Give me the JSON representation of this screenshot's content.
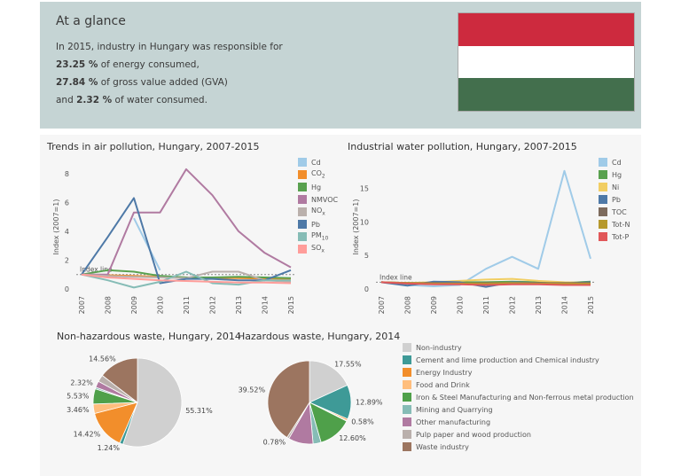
{
  "banner": {
    "title": "At a glance",
    "lines": [
      {
        "pre": "In 2015, industry in Hungary was responsible for",
        "val": "",
        "post": ""
      },
      {
        "pre": "",
        "val": "23.25 %",
        "post": " of energy consumed,"
      },
      {
        "pre": "",
        "val": "27.84 %",
        "post": " of gross value added (GVA)"
      },
      {
        "pre": "and ",
        "val": "2.32 %",
        "post": " of water consumed."
      }
    ],
    "flag_colors": [
      "#cd2a3e",
      "#ffffff",
      "#436f4d"
    ]
  },
  "chart_data": [
    {
      "id": "air",
      "type": "line",
      "title": "Trends in air pollution, Hungary, 2007-2015",
      "ylabel": "Index (2007=1)",
      "x": [
        "2007",
        "2008",
        "2009",
        "2010",
        "2011",
        "2012",
        "2013",
        "2014",
        "2015"
      ],
      "ylim": [
        0,
        8.6
      ],
      "yticks": [
        0,
        2,
        4,
        6,
        8
      ],
      "index_line_label": "Index line",
      "series": [
        {
          "name": "Cd",
          "sub": "",
          "color": "#a0cbe8",
          "values": [
            null,
            null,
            4.9,
            1.3,
            null,
            null,
            null,
            null,
            null
          ]
        },
        {
          "name": "CO",
          "sub": "2",
          "color": "#f28e2b",
          "values": [
            1.0,
            0.95,
            0.9,
            0.85,
            0.8,
            0.78,
            0.75,
            0.72,
            0.7
          ]
        },
        {
          "name": "Hg",
          "sub": "",
          "color": "#59a14f",
          "values": [
            1.0,
            1.3,
            1.2,
            0.9,
            0.8,
            0.8,
            0.85,
            0.8,
            0.75
          ]
        },
        {
          "name": "NMVOC",
          "sub": "",
          "color": "#b07aa1",
          "values": [
            1.0,
            1.0,
            5.3,
            5.3,
            8.3,
            6.5,
            4.0,
            2.5,
            1.5
          ]
        },
        {
          "name": "NO",
          "sub": "x",
          "color": "#bab0ac",
          "values": [
            1.0,
            0.9,
            0.85,
            0.8,
            0.75,
            1.2,
            1.2,
            0.6,
            0.5
          ]
        },
        {
          "name": "Pb",
          "sub": "",
          "color": "#4e79a7",
          "values": [
            1.0,
            3.6,
            6.3,
            0.4,
            0.7,
            0.7,
            0.6,
            0.6,
            1.3
          ]
        },
        {
          "name": "PM",
          "sub": "10",
          "color": "#86bcb6",
          "values": [
            1.0,
            0.6,
            0.1,
            0.5,
            1.2,
            0.4,
            0.3,
            0.6,
            0.6
          ]
        },
        {
          "name": "SO",
          "sub": "x",
          "color": "#ff9d9a",
          "values": [
            1.0,
            0.8,
            0.7,
            0.6,
            0.55,
            0.5,
            0.45,
            0.45,
            0.4
          ]
        }
      ]
    },
    {
      "id": "water",
      "type": "line",
      "title": "Industrial water pollution, Hungary, 2007-2015",
      "ylabel": "Index (2007=1)",
      "x": [
        "2007",
        "2008",
        "2009",
        "2010",
        "2011",
        "2012",
        "2013",
        "2014",
        "2015"
      ],
      "ylim": [
        0,
        18.5
      ],
      "yticks": [
        0,
        5,
        10,
        15
      ],
      "index_line_label": "Index line",
      "series": [
        {
          "name": "Cd",
          "sub": "",
          "color": "#a0cbe8",
          "values": [
            1.0,
            0.6,
            0.4,
            0.6,
            3.0,
            4.8,
            3.0,
            17.6,
            4.5
          ]
        },
        {
          "name": "Hg",
          "sub": "",
          "color": "#59a14f",
          "values": [
            1.0,
            0.8,
            0.9,
            1.0,
            1.0,
            1.1,
            1.0,
            0.9,
            1.1
          ]
        },
        {
          "name": "Ni",
          "sub": "",
          "color": "#f1ce63",
          "values": [
            1.0,
            0.9,
            1.0,
            1.2,
            1.4,
            1.5,
            1.2,
            1.0,
            0.9
          ]
        },
        {
          "name": "Pb",
          "sub": "",
          "color": "#4e79a7",
          "values": [
            1.0,
            0.5,
            1.1,
            1.0,
            0.3,
            1.0,
            0.9,
            0.8,
            1.0
          ]
        },
        {
          "name": "TOC",
          "sub": "",
          "color": "#7d6b5d",
          "values": [
            1.0,
            0.9,
            0.9,
            0.8,
            0.9,
            0.9,
            0.9,
            0.9,
            0.9
          ]
        },
        {
          "name": "Tot-N",
          "sub": "",
          "color": "#b6992d",
          "values": [
            1.0,
            0.9,
            0.8,
            0.8,
            0.8,
            0.9,
            0.8,
            0.8,
            0.8
          ]
        },
        {
          "name": "Tot-P",
          "sub": "",
          "color": "#e15759",
          "values": [
            1.0,
            0.8,
            0.7,
            0.7,
            0.6,
            0.7,
            0.7,
            0.6,
            0.6
          ]
        }
      ]
    },
    {
      "id": "nonhaz",
      "type": "pie",
      "title": "Non-hazardous waste, Hungary, 2014",
      "slices": [
        {
          "category": "Non-industry",
          "value": 55.31,
          "label": "55.31%"
        },
        {
          "category": "Cement and lime production and Chemical industry",
          "value": 1.24,
          "label": "1.24%"
        },
        {
          "category": "Energy Industry",
          "value": 14.42,
          "label": "14.42%"
        },
        {
          "category": "Food and Drink",
          "value": 3.46,
          "label": "3.46%"
        },
        {
          "category": "Iron & Steel Manufacturing and Non-ferrous metal production",
          "value": 5.53,
          "label": "5.53%"
        },
        {
          "category": "Mining and Quarrying",
          "value": 0.6,
          "label": ""
        },
        {
          "category": "Other manufacturing",
          "value": 2.32,
          "label": "2.32%"
        },
        {
          "category": "Pulp paper and wood production",
          "value": 2.56,
          "label": ""
        },
        {
          "category": "Waste industry",
          "value": 14.56,
          "label": "14.56%"
        }
      ]
    },
    {
      "id": "haz",
      "type": "pie",
      "title": "Hazardous waste, Hungary, 2014",
      "slices": [
        {
          "category": "Non-industry",
          "value": 17.55,
          "label": "17.55%"
        },
        {
          "category": "Cement and lime production and Chemical industry",
          "value": 12.89,
          "label": "12.89%"
        },
        {
          "category": "Energy Industry",
          "value": 0.58,
          "label": "0.58%"
        },
        {
          "category": "Food and Drink",
          "value": 0.3,
          "label": ""
        },
        {
          "category": "Iron & Steel Manufacturing and Non-ferrous metal production",
          "value": 12.6,
          "label": "12.60%"
        },
        {
          "category": "Mining and Quarrying",
          "value": 3.0,
          "label": ""
        },
        {
          "category": "Other manufacturing",
          "value": 9.3,
          "label": ""
        },
        {
          "category": "Pulp paper and wood production",
          "value": 0.78,
          "label": "0.78%"
        },
        {
          "category": "Waste industry",
          "value": 39.52,
          "label": "39.52%"
        }
      ]
    }
  ],
  "pie_legend": [
    {
      "name": "Non-industry",
      "color": "#d0d0d0"
    },
    {
      "name": "Cement and lime production and Chemical industry",
      "color": "#3e9a97"
    },
    {
      "name": "Energy Industry",
      "color": "#f28e2b"
    },
    {
      "name": "Food and Drink",
      "color": "#ffbe7d"
    },
    {
      "name": "Iron & Steel Manufacturing and Non-ferrous metal production",
      "color": "#4fa04a"
    },
    {
      "name": "Mining and Quarrying",
      "color": "#86bcb6"
    },
    {
      "name": "Other manufacturing",
      "color": "#b07aa1"
    },
    {
      "name": "Pulp paper and wood production",
      "color": "#bab0ac"
    },
    {
      "name": "Waste industry",
      "color": "#9c7560"
    }
  ]
}
